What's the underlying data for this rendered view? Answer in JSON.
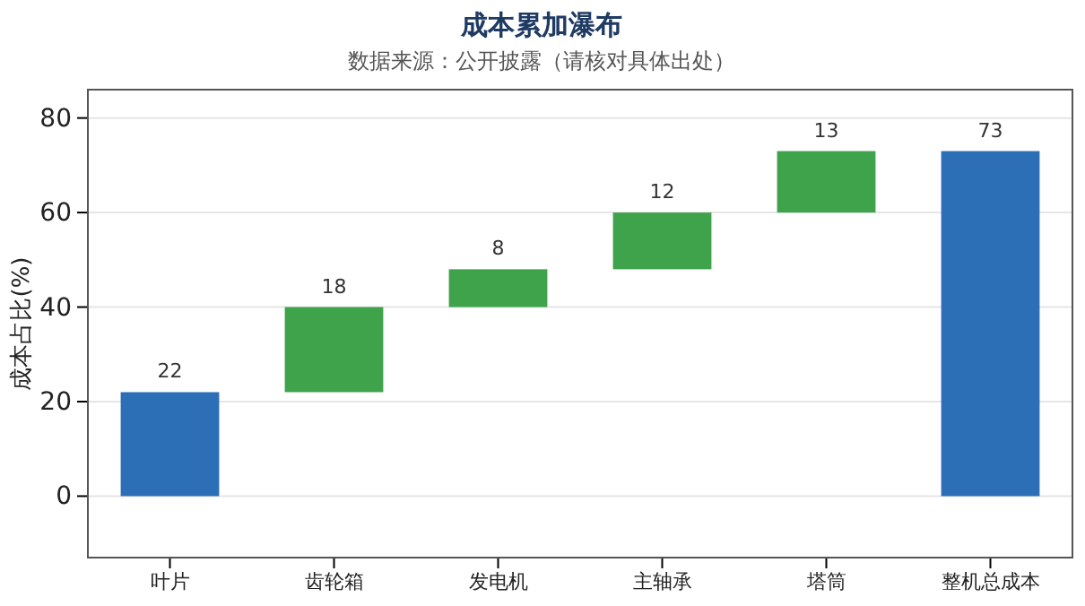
{
  "chart_data": {
    "type": "bar",
    "title": "成本累加瀑布",
    "subtitle": "数据来源：公开披露（请核对具体出处）",
    "ylabel": "成本占比(%)",
    "categories": [
      "叶片",
      "齿轮箱",
      "发电机",
      "主轴承",
      "塔筒",
      "整机总成本"
    ],
    "values": [
      22,
      18,
      8,
      12,
      13,
      73
    ],
    "base": [
      0,
      22,
      40,
      48,
      60,
      0
    ],
    "colors": [
      "#2c6fb7",
      "#3ea34b",
      "#3ea34b",
      "#3ea34b",
      "#3ea34b",
      "#2c6fb7"
    ],
    "ylim": [
      -13,
      86
    ],
    "yticks": [
      0,
      20,
      40,
      60,
      80
    ],
    "grid": "y",
    "data_labels": true
  }
}
